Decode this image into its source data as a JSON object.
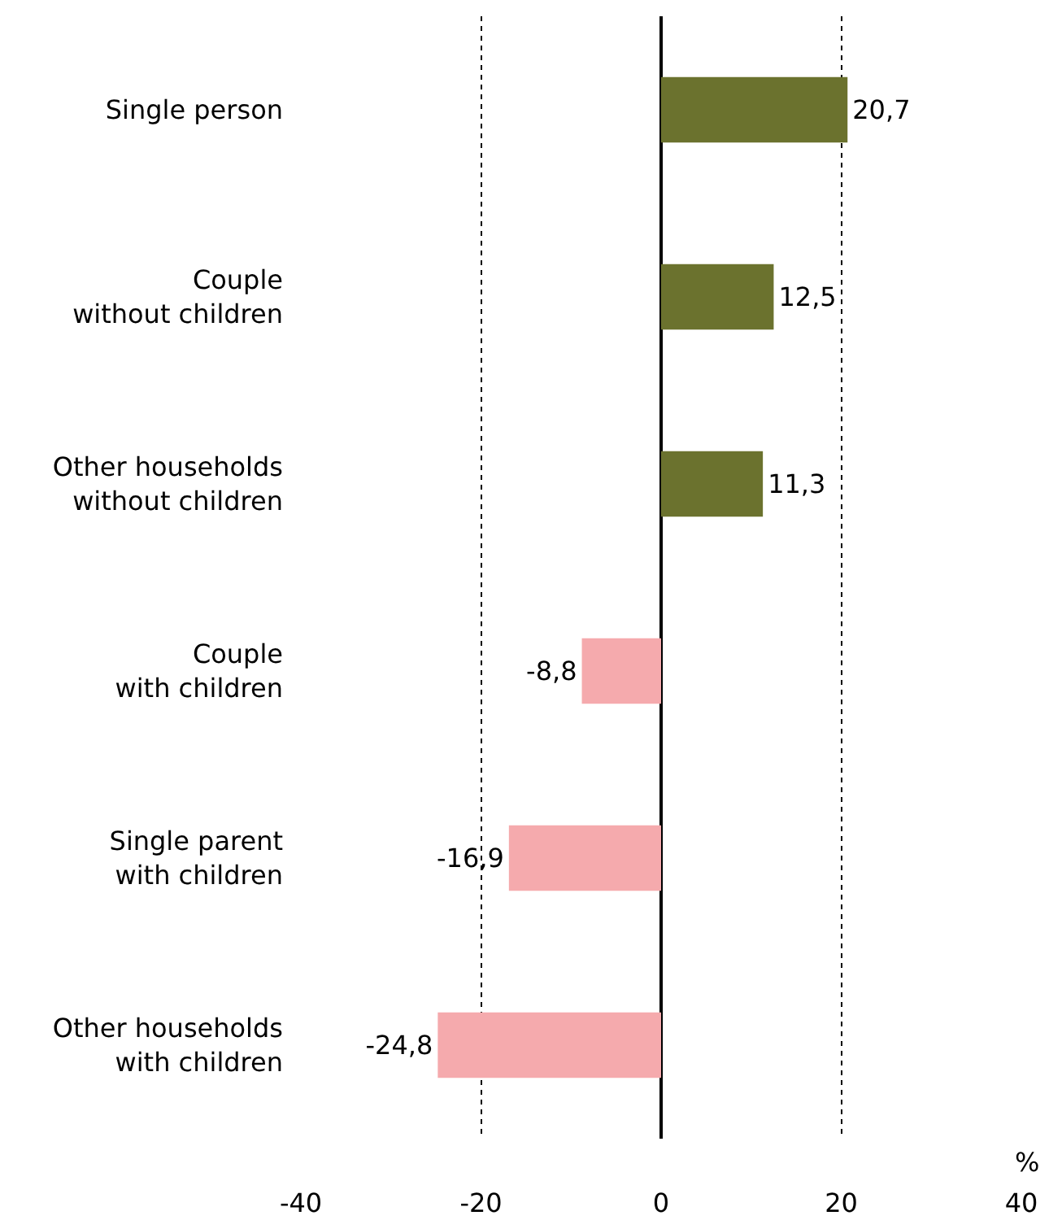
{
  "chart_data": {
    "type": "bar",
    "orientation": "horizontal",
    "categories": [
      "Single person",
      "Couple\n without children",
      "Other households\nwithout children",
      "Couple\n with children",
      "Single parent\nwith children",
      "Other households\n with children"
    ],
    "values": [
      20.7,
      12.5,
      11.3,
      -8.8,
      -16.9,
      -24.8
    ],
    "colors": [
      "#6b722e",
      "#6b722e",
      "#6b722e",
      "#f5aaad",
      "#f5aaad",
      "#f5aaad"
    ],
    "value_labels": [
      "20,7",
      "12,5",
      "11,3",
      "-8,8",
      "-16,9",
      "-24,8"
    ],
    "xlabel": "%",
    "xlim": [
      -40,
      40
    ],
    "xticks": [
      -40,
      -20,
      0,
      20,
      40
    ],
    "grid": "x"
  }
}
